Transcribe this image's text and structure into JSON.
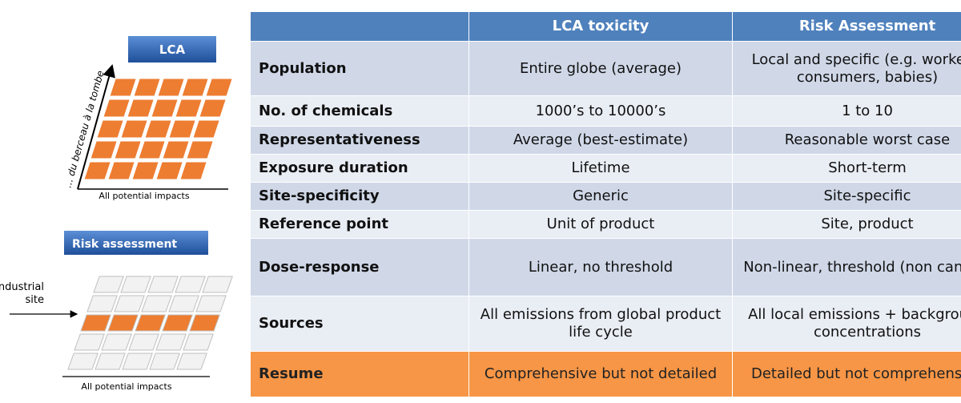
{
  "left": {
    "lca_label": "LCA",
    "lca_vertical_axis": "... du berceau à la tombe",
    "lca_horizontal_axis": "All potential impacts",
    "risk_label": "Risk assessment",
    "industrial_site": [
      "Industrial",
      "site"
    ],
    "risk_horizontal_axis": "All potential impacts"
  },
  "table": {
    "header": [
      "LCA toxicity",
      "Risk Assessment"
    ],
    "rows": [
      [
        "Population",
        "Entire globe (average)",
        "Local and specific (e.g. workers, consumers, babies)"
      ],
      [
        "No. of chemicals",
        "1000’s to 10000’s",
        "1 to 10"
      ],
      [
        "Representativeness",
        "Average (best-estimate)",
        "Reasonable worst case"
      ],
      [
        "Exposure duration",
        "Lifetime",
        "Short-term"
      ],
      [
        "Site-specificity",
        "Generic",
        "Site-specific"
      ],
      [
        "Reference point",
        "Unit of product",
        "Site, product"
      ],
      [
        "Dose-response",
        "Linear, no threshold",
        "Non-linear, threshold (non cancer)"
      ],
      [
        "Sources",
        "All emissions from global product life cycle",
        "All local emissions + background concentrations"
      ]
    ],
    "summary": [
      "Resume",
      "Comprehensive but not detailed",
      "Detailed but not comprehensive"
    ]
  }
}
